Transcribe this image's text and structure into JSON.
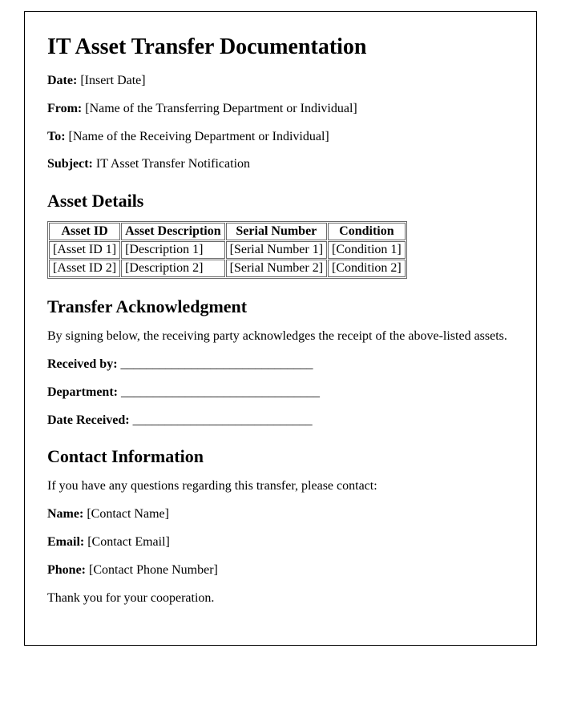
{
  "title": "IT Asset Transfer Documentation",
  "meta": {
    "date_label": "Date:",
    "date_value": "[Insert Date]",
    "from_label": "From:",
    "from_value": "[Name of the Transferring Department or Individual]",
    "to_label": "To:",
    "to_value": "[Name of the Receiving Department or Individual]",
    "subject_label": "Subject:",
    "subject_value": "IT Asset Transfer Notification"
  },
  "asset_details": {
    "heading": "Asset Details",
    "columns": [
      "Asset ID",
      "Asset Description",
      "Serial Number",
      "Condition"
    ],
    "rows": [
      [
        "[Asset ID 1]",
        "[Description 1]",
        "[Serial Number 1]",
        "[Condition 1]"
      ],
      [
        "[Asset ID 2]",
        "[Description 2]",
        "[Serial Number 2]",
        "[Condition 2]"
      ]
    ]
  },
  "acknowledgment": {
    "heading": "Transfer Acknowledgment",
    "intro": "By signing below, the receiving party acknowledges the receipt of the above-listed assets.",
    "received_by_label": "Received by:",
    "received_by_line": "______________________________",
    "department_label": "Department:",
    "department_line": "_______________________________",
    "date_received_label": "Date Received:",
    "date_received_line": "____________________________"
  },
  "contact": {
    "heading": "Contact Information",
    "intro": "If you have any questions regarding this transfer, please contact:",
    "name_label": "Name:",
    "name_value": "[Contact Name]",
    "email_label": "Email:",
    "email_value": "[Contact Email]",
    "phone_label": "Phone:",
    "phone_value": "[Contact Phone Number]",
    "closing": "Thank you for your cooperation."
  }
}
